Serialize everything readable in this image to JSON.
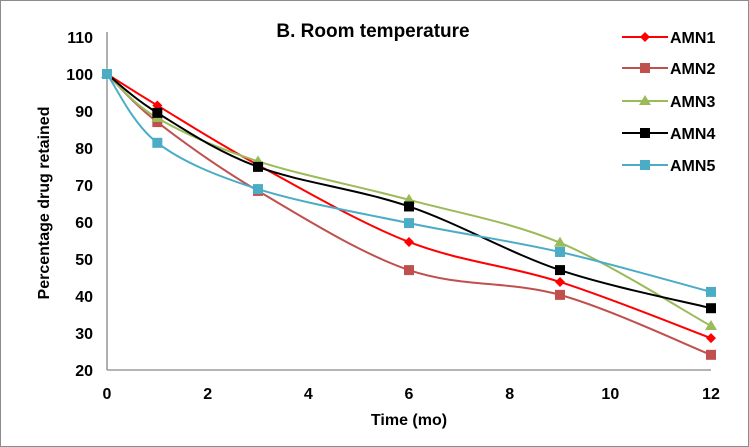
{
  "chart_data": {
    "type": "line",
    "title": "B. Room temperature",
    "xlabel": "Time (mo)",
    "ylabel": "Percentage drug retained",
    "xlim": [
      0,
      12
    ],
    "ylim": [
      20,
      110
    ],
    "xticks": [
      0,
      2,
      4,
      6,
      8,
      10,
      12
    ],
    "yticks": [
      20,
      30,
      40,
      50,
      60,
      70,
      80,
      90,
      100,
      110
    ],
    "grid": false,
    "legend": "right",
    "x": [
      0,
      1,
      3,
      6,
      9,
      12
    ],
    "series": [
      {
        "name": "AMN1",
        "color": "#ff0000",
        "marker": "diamond",
        "values": [
          100,
          91.5,
          75.4,
          54.6,
          43.8,
          28.6
        ]
      },
      {
        "name": "AMN2",
        "color": "#c0504d",
        "marker": "square",
        "values": [
          100,
          87.0,
          68.4,
          47.0,
          40.3,
          24.1
        ]
      },
      {
        "name": "AMN3",
        "color": "#9bbb59",
        "marker": "triangle",
        "values": [
          100,
          88.1,
          76.4,
          66.0,
          54.4,
          31.9
        ]
      },
      {
        "name": "AMN4",
        "color": "#000000",
        "marker": "square",
        "values": [
          100,
          89.5,
          74.9,
          64.2,
          47.0,
          36.7
        ]
      },
      {
        "name": "AMN5",
        "color": "#4bacc6",
        "marker": "square",
        "values": [
          100,
          81.4,
          68.9,
          59.7,
          51.9,
          41.1
        ]
      }
    ]
  }
}
